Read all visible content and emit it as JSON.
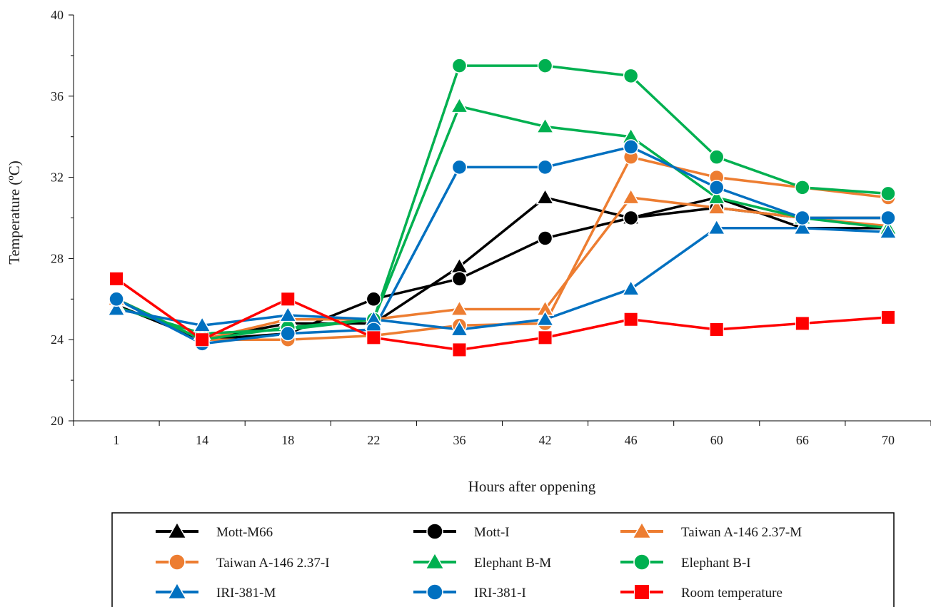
{
  "chart_data": {
    "type": "line",
    "categories": [
      "1",
      "14",
      "18",
      "22",
      "36",
      "42",
      "46",
      "60",
      "66",
      "70"
    ],
    "xlabel": "Hours after oppening",
    "ylabel": "Temperature (ºC)",
    "ylim": [
      20,
      40
    ],
    "yticks": [
      "20",
      "24",
      "28",
      "32",
      "36",
      "40"
    ],
    "grid": false,
    "legend": "bottom",
    "series": [
      {
        "name": "Mott-M66",
        "color": "#000000",
        "marker": "triangle",
        "values": [
          25.7,
          24.0,
          24.8,
          24.8,
          27.6,
          31.0,
          30.0,
          31.0,
          29.5,
          29.5
        ]
      },
      {
        "name": "Mott-I",
        "color": "#000000",
        "marker": "circle",
        "values": [
          26.0,
          24.0,
          24.3,
          26.0,
          27.0,
          29.0,
          30.0,
          30.5,
          30.0,
          30.0
        ]
      },
      {
        "name": "Taiwan A-146 2.37-M",
        "color": "#ED7D31",
        "marker": "triangle",
        "values": [
          26.0,
          24.0,
          25.0,
          25.0,
          25.5,
          25.5,
          31.0,
          30.5,
          30.0,
          29.6
        ]
      },
      {
        "name": "Taiwan A-146 2.37-I",
        "color": "#ED7D31",
        "marker": "circle",
        "values": [
          26.0,
          24.0,
          24.0,
          24.2,
          24.7,
          24.8,
          33.0,
          32.0,
          31.5,
          31.0
        ]
      },
      {
        "name": "Elephant B-M",
        "color": "#00B050",
        "marker": "triangle",
        "values": [
          25.6,
          24.3,
          24.5,
          25.0,
          35.5,
          34.5,
          34.0,
          31.0,
          30.0,
          29.5
        ]
      },
      {
        "name": "Elephant B-I",
        "color": "#00B050",
        "marker": "circle",
        "values": [
          26.0,
          24.0,
          24.6,
          25.0,
          37.5,
          37.5,
          37.0,
          33.0,
          31.5,
          31.2
        ]
      },
      {
        "name": "IRI-381-M",
        "color": "#0070C0",
        "marker": "triangle",
        "values": [
          25.5,
          24.7,
          25.2,
          25.0,
          24.5,
          25.0,
          26.5,
          29.5,
          29.5,
          29.3
        ]
      },
      {
        "name": "IRI-381-I",
        "color": "#0070C0",
        "marker": "circle",
        "values": [
          26.0,
          23.8,
          24.3,
          24.5,
          32.5,
          32.5,
          33.5,
          31.5,
          30.0,
          30.0
        ]
      },
      {
        "name": "Room temperature",
        "color": "#FF0000",
        "marker": "square",
        "values": [
          27.0,
          24.0,
          26.0,
          24.1,
          23.5,
          24.1,
          25.0,
          24.5,
          24.8,
          25.1
        ]
      }
    ]
  }
}
